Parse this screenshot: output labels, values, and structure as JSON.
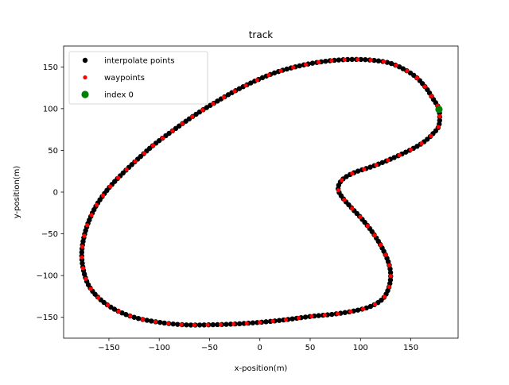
{
  "chart_data": {
    "type": "scatter",
    "title": "track",
    "xlabel": "x-position(m)",
    "ylabel": "y-position(m)",
    "xlim": [
      -195,
      197
    ],
    "ylim": [
      -175,
      175
    ],
    "xticks": [
      -150,
      -100,
      -50,
      0,
      50,
      100,
      150
    ],
    "yticks": [
      -150,
      -100,
      -50,
      0,
      50,
      100,
      150
    ],
    "grid": false,
    "legend_position": "top-left",
    "anchors": [
      [
        178,
        99
      ],
      [
        172,
        112
      ],
      [
        165,
        125
      ],
      [
        155,
        138
      ],
      [
        142,
        148
      ],
      [
        128,
        155
      ],
      [
        112,
        158
      ],
      [
        95,
        159
      ],
      [
        75,
        158
      ],
      [
        55,
        155
      ],
      [
        35,
        150
      ],
      [
        15,
        143
      ],
      [
        -5,
        133
      ],
      [
        -25,
        121
      ],
      [
        -45,
        107
      ],
      [
        -65,
        92
      ],
      [
        -85,
        75
      ],
      [
        -105,
        57
      ],
      [
        -120,
        41
      ],
      [
        -135,
        24
      ],
      [
        -150,
        5
      ],
      [
        -162,
        -15
      ],
      [
        -170,
        -35
      ],
      [
        -175,
        -55
      ],
      [
        -177,
        -75
      ],
      [
        -175,
        -95
      ],
      [
        -170,
        -112
      ],
      [
        -160,
        -127
      ],
      [
        -145,
        -140
      ],
      [
        -125,
        -150
      ],
      [
        -100,
        -156
      ],
      [
        -75,
        -159
      ],
      [
        -50,
        -159
      ],
      [
        -25,
        -158
      ],
      [
        0,
        -156
      ],
      [
        25,
        -153
      ],
      [
        50,
        -149
      ],
      [
        75,
        -146
      ],
      [
        95,
        -142
      ],
      [
        110,
        -137
      ],
      [
        122,
        -128
      ],
      [
        128,
        -115
      ],
      [
        130,
        -100
      ],
      [
        128,
        -85
      ],
      [
        122,
        -68
      ],
      [
        113,
        -50
      ],
      [
        102,
        -33
      ],
      [
        92,
        -20
      ],
      [
        83,
        -8
      ],
      [
        78,
        2
      ],
      [
        79,
        10
      ],
      [
        84,
        17
      ],
      [
        95,
        24
      ],
      [
        110,
        30
      ],
      [
        125,
        37
      ],
      [
        140,
        45
      ],
      [
        155,
        54
      ],
      [
        165,
        62
      ],
      [
        172,
        70
      ],
      [
        178,
        80
      ]
    ],
    "series": [
      {
        "name": "interpolate points",
        "color": "#000000",
        "marker": "dot",
        "markersize": 3.2
      },
      {
        "name": "waypoints",
        "color": "#ff0000",
        "marker": "dot",
        "markersize": 2.6
      },
      {
        "name": "index 0",
        "color": "#008000",
        "marker": "dot",
        "markersize": 4.6,
        "x": [
          178
        ],
        "y": [
          99
        ]
      }
    ],
    "interpolate_samples": 260,
    "waypoint_samples": 88
  }
}
